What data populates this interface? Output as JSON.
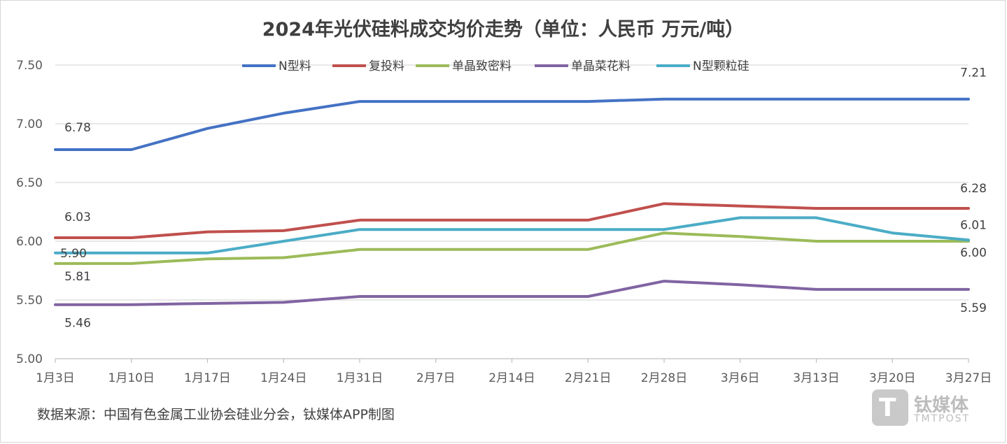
{
  "chart_data": {
    "type": "line",
    "title": "2024年光伏硅料成交均价走势（单位：人民币 万元/吨）",
    "xlabel": "",
    "ylabel": "",
    "categories": [
      "1月3日",
      "1月10日",
      "1月17日",
      "1月24日",
      "1月31日",
      "2月7日",
      "2月14日",
      "2月21日",
      "2月28日",
      "3月6日",
      "3月13日",
      "3月20日",
      "3月27日"
    ],
    "ylim": [
      5.0,
      7.5
    ],
    "yticks": [
      "5.00",
      "5.50",
      "6.00",
      "6.50",
      "7.00",
      "7.50"
    ],
    "grid": true,
    "legend_position": "top",
    "series": [
      {
        "name": "N型料",
        "color": "#4472c4",
        "values": [
          6.78,
          6.78,
          6.96,
          7.09,
          7.19,
          7.19,
          7.19,
          7.19,
          7.21,
          7.21,
          7.21,
          7.21,
          7.21
        ],
        "first_label": "6.78",
        "last_label": "7.21"
      },
      {
        "name": "复投料",
        "color": "#c0504d",
        "values": [
          6.03,
          6.03,
          6.08,
          6.09,
          6.18,
          6.18,
          6.18,
          6.18,
          6.32,
          6.3,
          6.28,
          6.28,
          6.28
        ],
        "first_label": "6.03",
        "last_label": "6.28"
      },
      {
        "name": "单晶致密料",
        "color": "#9bbb59",
        "values": [
          5.81,
          5.81,
          5.85,
          5.86,
          5.93,
          5.93,
          5.93,
          5.93,
          6.07,
          6.04,
          6.0,
          6.0,
          6.0
        ],
        "first_label": "5.81",
        "last_label": "6.00"
      },
      {
        "name": "单晶菜花料",
        "color": "#8064a2",
        "values": [
          5.46,
          5.46,
          5.47,
          5.48,
          5.53,
          5.53,
          5.53,
          5.53,
          5.66,
          5.63,
          5.59,
          5.59,
          5.59
        ],
        "first_label": "5.46",
        "last_label": "5.59"
      },
      {
        "name": "N型颗粒硅",
        "color": "#4bacc6",
        "values": [
          5.9,
          5.9,
          5.9,
          6.0,
          6.1,
          6.1,
          6.1,
          6.1,
          6.1,
          6.2,
          6.2,
          6.07,
          6.01
        ],
        "first_label": "5.90",
        "last_label": "6.01"
      }
    ]
  },
  "source_text": "数据来源：中国有色金属工业协会硅业分会，钛媒体APP制图",
  "watermark": {
    "cn": "钛媒体",
    "en": "TMTPOST",
    "logo": "T"
  }
}
